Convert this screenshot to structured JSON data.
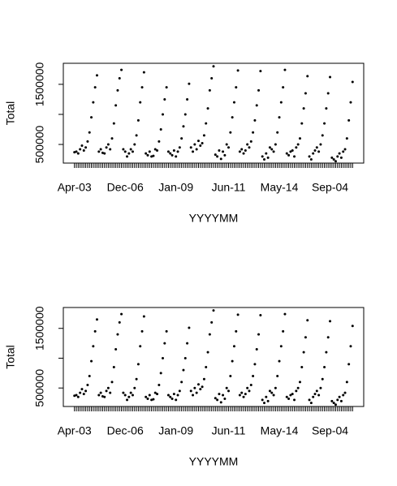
{
  "chart_data": [
    {
      "type": "scatter",
      "xlabel": "YYYYMM",
      "ylabel": "Total",
      "color": "#000000",
      "categories": [
        "Apr-03",
        null,
        null,
        null,
        null,
        null,
        null,
        null,
        null,
        null,
        null,
        null,
        null,
        null,
        null,
        null,
        null,
        null,
        null,
        null,
        null,
        null,
        null,
        null,
        null,
        null,
        null,
        "Dec-06",
        null,
        null,
        null,
        null,
        null,
        null,
        null,
        null,
        null,
        null,
        null,
        null,
        null,
        null,
        null,
        null,
        null,
        null,
        null,
        null,
        null,
        null,
        null,
        null,
        null,
        null,
        "Jan-09",
        null,
        null,
        null,
        null,
        null,
        null,
        null,
        null,
        null,
        null,
        null,
        null,
        null,
        null,
        null,
        null,
        null,
        null,
        null,
        null,
        null,
        null,
        null,
        null,
        null,
        null,
        null,
        "Jun-11",
        null,
        null,
        null,
        null,
        null,
        null,
        null,
        null,
        null,
        null,
        null,
        null,
        null,
        null,
        null,
        null,
        null,
        null,
        null,
        null,
        null,
        null,
        null,
        null,
        null,
        null,
        "May-14",
        null,
        null,
        null,
        null,
        null,
        null,
        null,
        null,
        null,
        null,
        null,
        null,
        null,
        null,
        null,
        null,
        null,
        null,
        null,
        null,
        null,
        null,
        null,
        null,
        null,
        null,
        "Sep-04",
        null,
        null,
        null,
        null,
        null,
        null,
        null,
        null,
        null,
        null,
        null,
        null
      ],
      "values": [
        370000,
        380000,
        350000,
        420000,
        480000,
        400000,
        450000,
        550000,
        700000,
        950000,
        1200000,
        1450000,
        1650000,
        380000,
        420000,
        360000,
        350000,
        450000,
        500000,
        420000,
        600000,
        850000,
        1150000,
        1400000,
        1600000,
        1740000,
        420000,
        380000,
        300000,
        350000,
        420000,
        380000,
        500000,
        650000,
        900000,
        1200000,
        1450000,
        1700000,
        350000,
        320000,
        380000,
        300000,
        310000,
        420000,
        400000,
        550000,
        750000,
        1000000,
        1250000,
        1450000,
        380000,
        350000,
        320000,
        400000,
        300000,
        380000,
        450000,
        600000,
        800000,
        1000000,
        1250000,
        1510000,
        450000,
        380000,
        500000,
        420000,
        560000,
        480000,
        520000,
        650000,
        850000,
        1100000,
        1400000,
        1600000,
        1800000,
        330000,
        300000,
        400000,
        260000,
        380000,
        320000,
        500000,
        450000,
        700000,
        950000,
        1200000,
        1450000,
        1730000,
        380000,
        420000,
        350000,
        400000,
        500000,
        450000,
        550000,
        700000,
        900000,
        1150000,
        1400000,
        1720000,
        300000,
        250000,
        350000,
        280000,
        450000,
        420000,
        380000,
        500000,
        700000,
        950000,
        1200000,
        1450000,
        1740000,
        350000,
        320000,
        380000,
        400000,
        300000,
        450000,
        500000,
        600000,
        850000,
        1100000,
        1350000,
        1635000,
        300000,
        250000,
        350000,
        400000,
        450000,
        380000,
        500000,
        650000,
        850000,
        1100000,
        1350000,
        1620000,
        280000,
        250000,
        220000,
        300000,
        350000,
        280000,
        380000,
        420000,
        600000,
        900000,
        1200000,
        1540000
      ],
      "ylim": [
        190000,
        1850000
      ],
      "yticks": [
        500000,
        {
          "value": 1000000,
          "label": null
        },
        1500000
      ]
    },
    {
      "type": "scatter",
      "xlabel": "YYYYMM",
      "ylabel": "Total",
      "color": "#000000",
      "categories": [
        "Apr-03",
        null,
        null,
        null,
        null,
        null,
        null,
        null,
        null,
        null,
        null,
        null,
        null,
        null,
        null,
        null,
        null,
        null,
        null,
        null,
        null,
        null,
        null,
        null,
        null,
        null,
        null,
        "Dec-06",
        null,
        null,
        null,
        null,
        null,
        null,
        null,
        null,
        null,
        null,
        null,
        null,
        null,
        null,
        null,
        null,
        null,
        null,
        null,
        null,
        null,
        null,
        null,
        null,
        null,
        null,
        "Jan-09",
        null,
        null,
        null,
        null,
        null,
        null,
        null,
        null,
        null,
        null,
        null,
        null,
        null,
        null,
        null,
        null,
        null,
        null,
        null,
        null,
        null,
        null,
        null,
        null,
        null,
        null,
        null,
        "Jun-11",
        null,
        null,
        null,
        null,
        null,
        null,
        null,
        null,
        null,
        null,
        null,
        null,
        null,
        null,
        null,
        null,
        null,
        null,
        null,
        null,
        null,
        null,
        null,
        null,
        null,
        null,
        "May-14",
        null,
        null,
        null,
        null,
        null,
        null,
        null,
        null,
        null,
        null,
        null,
        null,
        null,
        null,
        null,
        null,
        null,
        null,
        null,
        null,
        null,
        null,
        null,
        null,
        null,
        null,
        "Sep-04",
        null,
        null,
        null,
        null,
        null,
        null,
        null,
        null,
        null,
        null,
        null,
        null
      ],
      "values": [
        370000,
        380000,
        350000,
        420000,
        480000,
        400000,
        450000,
        550000,
        700000,
        950000,
        1200000,
        1450000,
        1650000,
        380000,
        420000,
        360000,
        350000,
        450000,
        500000,
        420000,
        600000,
        850000,
        1150000,
        1400000,
        1600000,
        1740000,
        420000,
        380000,
        300000,
        350000,
        420000,
        380000,
        500000,
        650000,
        900000,
        1200000,
        1450000,
        1700000,
        350000,
        320000,
        380000,
        300000,
        310000,
        420000,
        400000,
        550000,
        750000,
        1000000,
        1250000,
        1450000,
        380000,
        350000,
        320000,
        400000,
        300000,
        380000,
        450000,
        600000,
        800000,
        1000000,
        1250000,
        1510000,
        450000,
        380000,
        500000,
        420000,
        560000,
        480000,
        520000,
        650000,
        850000,
        1100000,
        1400000,
        1600000,
        1800000,
        330000,
        300000,
        400000,
        260000,
        380000,
        320000,
        500000,
        450000,
        700000,
        950000,
        1200000,
        1450000,
        1730000,
        380000,
        420000,
        350000,
        400000,
        500000,
        450000,
        550000,
        700000,
        900000,
        1150000,
        1400000,
        1720000,
        300000,
        250000,
        350000,
        280000,
        450000,
        420000,
        380000,
        500000,
        700000,
        950000,
        1200000,
        1450000,
        1740000,
        350000,
        320000,
        380000,
        400000,
        300000,
        450000,
        500000,
        600000,
        850000,
        1100000,
        1350000,
        1635000,
        300000,
        250000,
        350000,
        400000,
        450000,
        380000,
        500000,
        650000,
        850000,
        1100000,
        1350000,
        1620000,
        280000,
        250000,
        220000,
        300000,
        350000,
        280000,
        380000,
        420000,
        600000,
        900000,
        1200000,
        1540000
      ],
      "ylim": [
        190000,
        1850000
      ],
      "yticks": [
        500000,
        {
          "value": 1000000,
          "label": null
        },
        1500000
      ]
    }
  ]
}
